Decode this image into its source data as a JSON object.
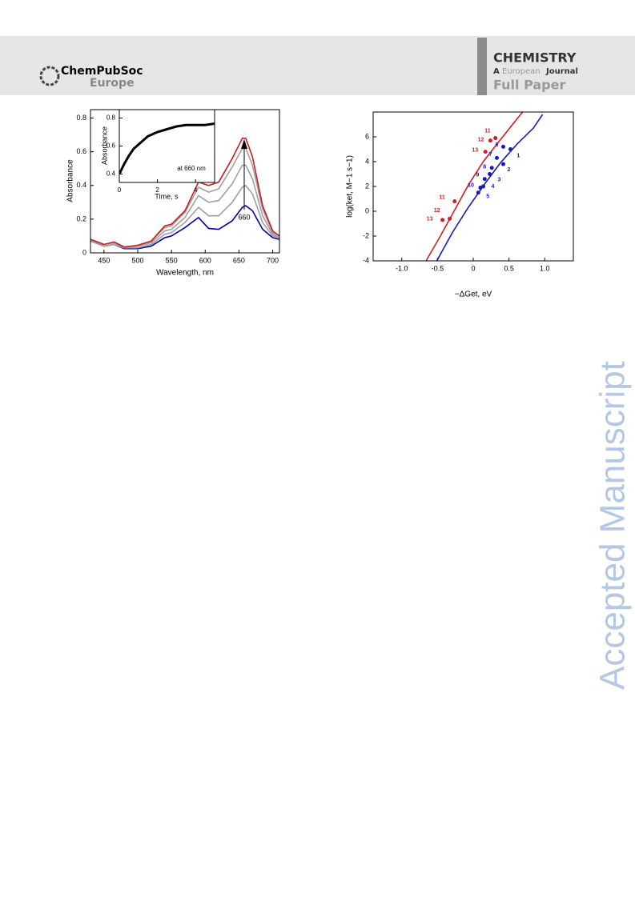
{
  "header": {
    "society": "ChemPubSoc",
    "society_region": "Europe",
    "journal": "CHEMISTRY",
    "journal_subtitle_a": "A",
    "journal_subtitle_b": "European",
    "journal_subtitle_c": "Journal",
    "article_type": "Full Paper"
  },
  "watermark": "Accepted Manuscript",
  "chart_data": [
    {
      "type": "line",
      "xlabel": "Wavelength, nm",
      "ylabel": "Absorbance",
      "x": [
        430,
        450,
        465,
        480,
        500,
        520,
        540,
        550,
        570,
        590,
        605,
        620,
        640,
        655,
        660,
        670,
        685,
        700,
        710
      ],
      "series": [
        {
          "color": "#0000b4",
          "values": [
            0.07,
            0.04,
            0.05,
            0.025,
            0.025,
            0.04,
            0.09,
            0.1,
            0.15,
            0.21,
            0.145,
            0.14,
            0.19,
            0.27,
            0.28,
            0.25,
            0.14,
            0.09,
            0.08
          ]
        },
        {
          "color": "#a0a0a0",
          "values": [
            0.07,
            0.04,
            0.05,
            0.03,
            0.03,
            0.05,
            0.11,
            0.12,
            0.18,
            0.27,
            0.22,
            0.22,
            0.3,
            0.39,
            0.4,
            0.35,
            0.18,
            0.1,
            0.09
          ]
        },
        {
          "color": "#a0a0a0",
          "values": [
            0.08,
            0.05,
            0.06,
            0.03,
            0.04,
            0.06,
            0.13,
            0.14,
            0.21,
            0.34,
            0.3,
            0.31,
            0.41,
            0.52,
            0.52,
            0.44,
            0.22,
            0.11,
            0.09
          ]
        },
        {
          "color": "#a0a0a0",
          "values": [
            0.08,
            0.05,
            0.06,
            0.03,
            0.04,
            0.07,
            0.15,
            0.16,
            0.24,
            0.39,
            0.36,
            0.38,
            0.51,
            0.62,
            0.62,
            0.52,
            0.26,
            0.12,
            0.1
          ]
        },
        {
          "color": "#c81e1e",
          "values": [
            0.08,
            0.05,
            0.065,
            0.035,
            0.045,
            0.07,
            0.16,
            0.17,
            0.25,
            0.42,
            0.4,
            0.42,
            0.56,
            0.68,
            0.68,
            0.57,
            0.28,
            0.13,
            0.1
          ]
        }
      ],
      "xlim": [
        430,
        710
      ],
      "xticks": [
        450,
        500,
        550,
        600,
        650,
        700
      ],
      "ylim": [
        0,
        0.85
      ],
      "yticks": [
        0,
        0.2,
        0.4,
        0.6,
        0.8
      ],
      "grid": false,
      "annotation": "660"
    },
    {
      "type": "line",
      "xlabel": "Time, s",
      "ylabel": "Absorbance",
      "annotation": "at 660 nm",
      "x": [
        0,
        0.25,
        0.5,
        0.75,
        1,
        1.5,
        2,
        2.5,
        3,
        3.5,
        4,
        4.5,
        5
      ],
      "series": [
        {
          "color": "#000000",
          "values": [
            0.4,
            0.47,
            0.53,
            0.58,
            0.61,
            0.67,
            0.7,
            0.72,
            0.74,
            0.75,
            0.75,
            0.75,
            0.76
          ]
        }
      ],
      "xlim": [
        0,
        5
      ],
      "xticks": [
        0,
        2,
        4
      ],
      "ylim": [
        0.34,
        0.86
      ],
      "yticks": [
        0.4,
        0.6,
        0.8
      ],
      "grid": false
    },
    {
      "type": "scatter",
      "xlabel": "−ΔGet, eV",
      "ylabel": "log(ket, M−1 s−1)",
      "series": [
        {
          "color": "#1a1ab4",
          "labels": [
            "1",
            "2",
            "3",
            "4",
            "5",
            "6",
            "7",
            "8",
            "9",
            "10"
          ],
          "x": [
            0.52,
            0.42,
            0.23,
            0.14,
            0.07,
            0.42,
            0.33,
            0.26,
            0.16,
            0.1
          ],
          "values": [
            5.0,
            3.8,
            3.0,
            2.0,
            1.5,
            5.2,
            4.3,
            3.5,
            2.6,
            1.9
          ]
        },
        {
          "color": "#d21e1e",
          "labels": [
            "11",
            "12",
            "13",
            "11",
            "12",
            "13"
          ],
          "x": [
            0.31,
            0.24,
            0.17,
            -0.26,
            -0.33,
            -0.43
          ],
          "values": [
            5.9,
            5.7,
            4.8,
            0.8,
            -0.6,
            -0.7
          ]
        }
      ],
      "fits": [
        {
          "color": "#d21e1e",
          "x": [
            -0.66,
            -0.46,
            -0.26,
            -0.07,
            0.14,
            0.33,
            0.55,
            0.69
          ],
          "values": [
            -4,
            -2,
            0.1,
            2.1,
            4.0,
            5.4,
            7.0,
            8.0
          ]
        },
        {
          "color": "#1a1ab4",
          "x": [
            -0.51,
            -0.29,
            -0.07,
            0.16,
            0.38,
            0.61,
            0.84,
            0.97
          ],
          "values": [
            -4,
            -1.7,
            0.3,
            2.2,
            3.9,
            5.4,
            6.7,
            7.8
          ]
        }
      ],
      "xlim": [
        -1.4,
        1.4
      ],
      "xticks": [
        {
          "value": -1,
          "label": "-1.0"
        },
        -0.5,
        0,
        0.5,
        {
          "value": 1,
          "label": "1.0"
        }
      ],
      "ylim": [
        -4,
        8
      ],
      "yticks": [
        -4,
        -2,
        0,
        2,
        4,
        6
      ],
      "grid": false
    }
  ]
}
